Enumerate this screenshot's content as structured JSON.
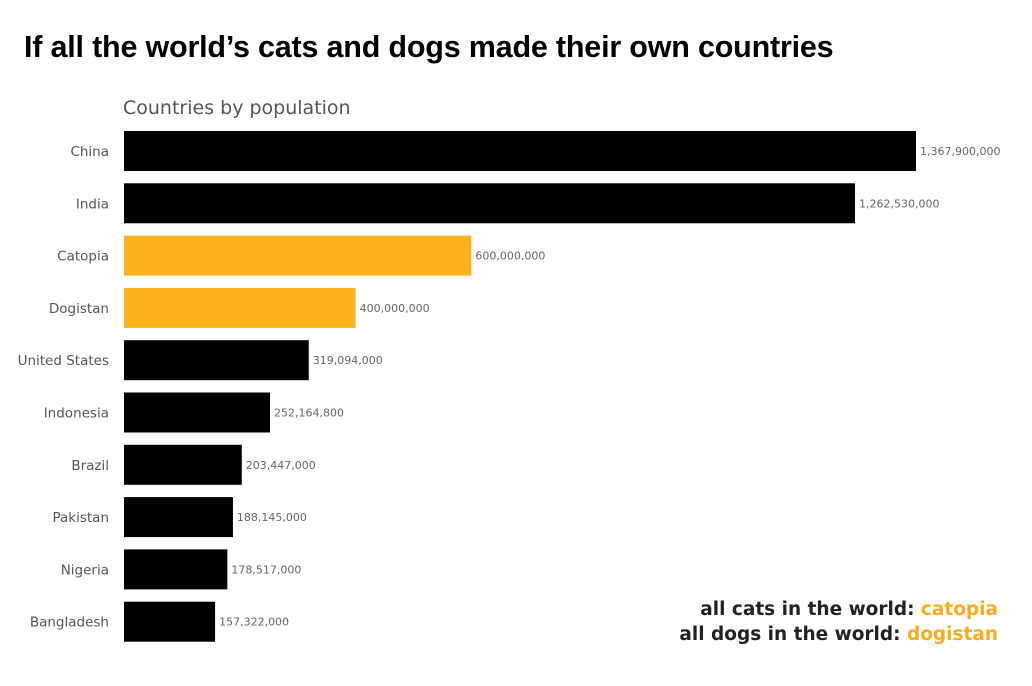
{
  "title": "If all the world’s cats and dogs made their own countries",
  "chart_data": {
    "type": "bar",
    "orientation": "horizontal",
    "title": "Countries by population",
    "xlabel": "",
    "ylabel": "",
    "xlim": [
      0,
      1367900000
    ],
    "grid": false,
    "categories": [
      "China",
      "India",
      "Catopia",
      "Dogistan",
      "United States",
      "Indonesia",
      "Brazil",
      "Pakistan",
      "Nigeria",
      "Bangladesh"
    ],
    "values": [
      1367900000,
      1262530000,
      600000000,
      400000000,
      319094000,
      252164800,
      203447000,
      188145000,
      178517000,
      157322000
    ],
    "value_labels": [
      "1,367,900,000",
      "1,262,530,000",
      "600,000,000",
      "400,000,000",
      "319,094,000",
      "252,164,800",
      "203,447,000",
      "188,145,000",
      "178,517,000",
      "157,322,000"
    ],
    "highlight": [
      false,
      false,
      true,
      true,
      false,
      false,
      false,
      false,
      false,
      false
    ],
    "colors": {
      "default": "#000000",
      "highlight": "#fcb31b"
    }
  },
  "notes": [
    {
      "text": "all cats in the world: ",
      "highlight": "catopia"
    },
    {
      "text": "all dogs in the world: ",
      "highlight": "dogistan"
    }
  ],
  "colors": {
    "accent": "#f9ad1c",
    "text": "#222222"
  }
}
